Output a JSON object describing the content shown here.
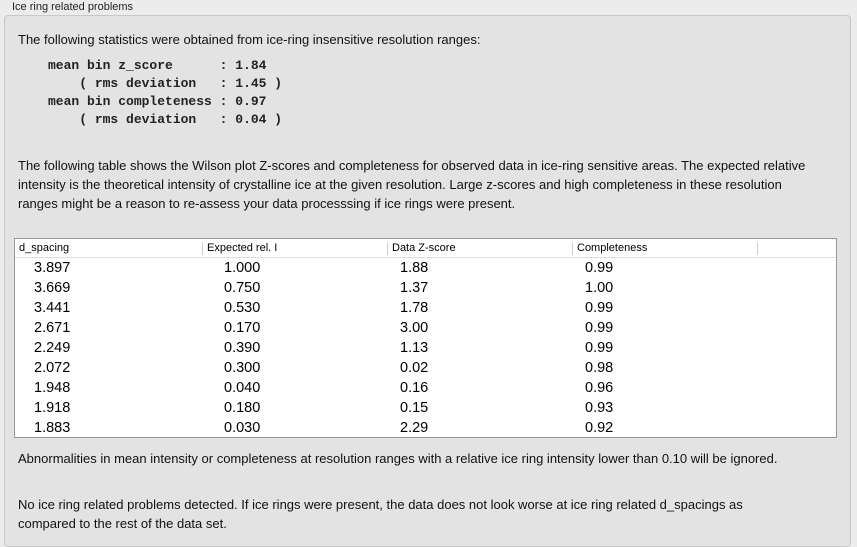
{
  "group_title": "Ice ring related problems",
  "intro": "The following statistics were obtained from ice-ring insensitive resolution ranges:",
  "stats": [
    {
      "label": "mean bin z_score      ",
      "value": "1.84",
      "indent": false
    },
    {
      "label": "( rms deviation   ",
      "value": "1.45 )",
      "indent": true
    },
    {
      "label": "mean bin completeness ",
      "value": "0.97",
      "indent": false
    },
    {
      "label": "( rms deviation   ",
      "value": "0.04 )",
      "indent": true
    }
  ],
  "table_description": "The following table shows the Wilson plot Z-scores and completeness for observed data in ice-ring sensitive areas. The expected relative intensity is the theoretical intensity of crystalline ice at the given resolution. Large z-scores and high completeness in these resolution ranges might be a reason to re-assess your data processsing if ice rings were present.",
  "table": {
    "columns": [
      "d_spacing",
      "Expected rel. I",
      "Data Z-score",
      "Completeness"
    ],
    "rows": [
      [
        "3.897",
        "1.000",
        "1.88",
        "0.99"
      ],
      [
        "3.669",
        "0.750",
        "1.37",
        "1.00"
      ],
      [
        "3.441",
        "0.530",
        "1.78",
        "0.99"
      ],
      [
        "2.671",
        "0.170",
        "3.00",
        "0.99"
      ],
      [
        "2.249",
        "0.390",
        "1.13",
        "0.99"
      ],
      [
        "2.072",
        "0.300",
        "0.02",
        "0.98"
      ],
      [
        "1.948",
        "0.040",
        "0.16",
        "0.96"
      ],
      [
        "1.918",
        "0.180",
        "0.15",
        "0.93"
      ],
      [
        "1.883",
        "0.030",
        "2.29",
        "0.92"
      ]
    ]
  },
  "note": "Abnormalities in mean intensity or completeness at resolution ranges with a relative ice ring intensity lower than 0.10 will be ignored.",
  "conclusion": "No ice ring related problems detected. If ice rings were present, the data does not look worse at ice ring related d_spacings as compared to the rest of the data set."
}
